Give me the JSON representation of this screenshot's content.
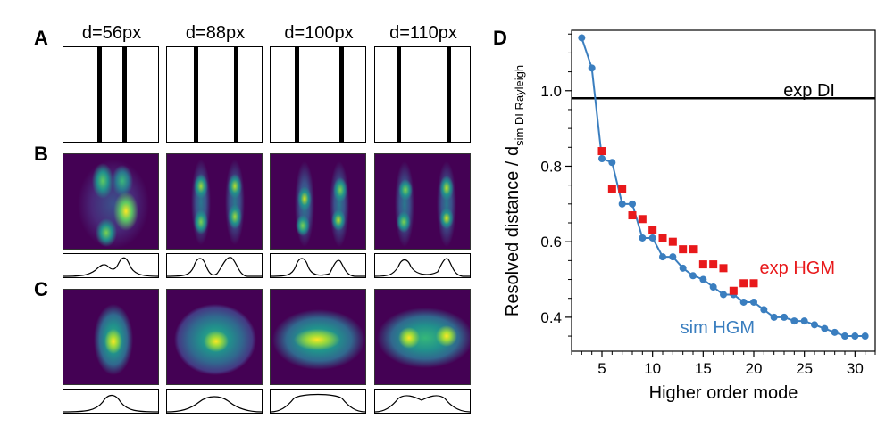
{
  "figure": {
    "panel_labels": [
      "A",
      "B",
      "C",
      "D"
    ],
    "separations": [
      "d=56px",
      "d=88px",
      "d=100px",
      "d=110px"
    ]
  },
  "colors": {
    "sim": "#3a7ebf",
    "exp": "#e8191b",
    "heat_low": "#440154",
    "heat_high": "#fde725"
  },
  "chart_data": {
    "type": "scatter",
    "title": "",
    "xlabel": "Higher order mode",
    "ylabel_main": "Resolved distance / d",
    "ylabel_sub": "sim DI Rayleigh",
    "xlim": [
      2,
      32
    ],
    "ylim": [
      0.31,
      1.16
    ],
    "xticks": [
      5,
      10,
      15,
      20,
      25,
      30
    ],
    "yticks": [
      0.4,
      0.6,
      0.8,
      1.0
    ],
    "ytick_labels": [
      "0.4",
      "0.6",
      "0.8",
      "1.0"
    ],
    "grid": false,
    "reference_line": {
      "name": "exp DI",
      "y": 0.98
    },
    "series": [
      {
        "name": "sim HGM",
        "style": "line-marker",
        "x": [
          3,
          4,
          5,
          6,
          7,
          8,
          9,
          10,
          11,
          12,
          13,
          14,
          15,
          16,
          17,
          18,
          19,
          20,
          21,
          22,
          23,
          24,
          25,
          26,
          27,
          28,
          29,
          30,
          31
        ],
        "y": [
          1.14,
          1.06,
          0.82,
          0.81,
          0.7,
          0.7,
          0.61,
          0.61,
          0.56,
          0.56,
          0.53,
          0.51,
          0.5,
          0.48,
          0.46,
          0.46,
          0.44,
          0.44,
          0.42,
          0.4,
          0.4,
          0.39,
          0.39,
          0.38,
          0.37,
          0.36,
          0.35,
          0.35,
          0.35
        ]
      },
      {
        "name": "exp HGM",
        "style": "square-marker",
        "x": [
          5,
          6,
          7,
          8,
          9,
          10,
          11,
          12,
          13,
          14,
          15,
          16,
          17,
          18,
          19,
          20
        ],
        "y": [
          0.84,
          0.74,
          0.74,
          0.67,
          0.66,
          0.63,
          0.61,
          0.6,
          0.58,
          0.58,
          0.54,
          0.54,
          0.53,
          0.47,
          0.49,
          0.49
        ]
      }
    ]
  }
}
